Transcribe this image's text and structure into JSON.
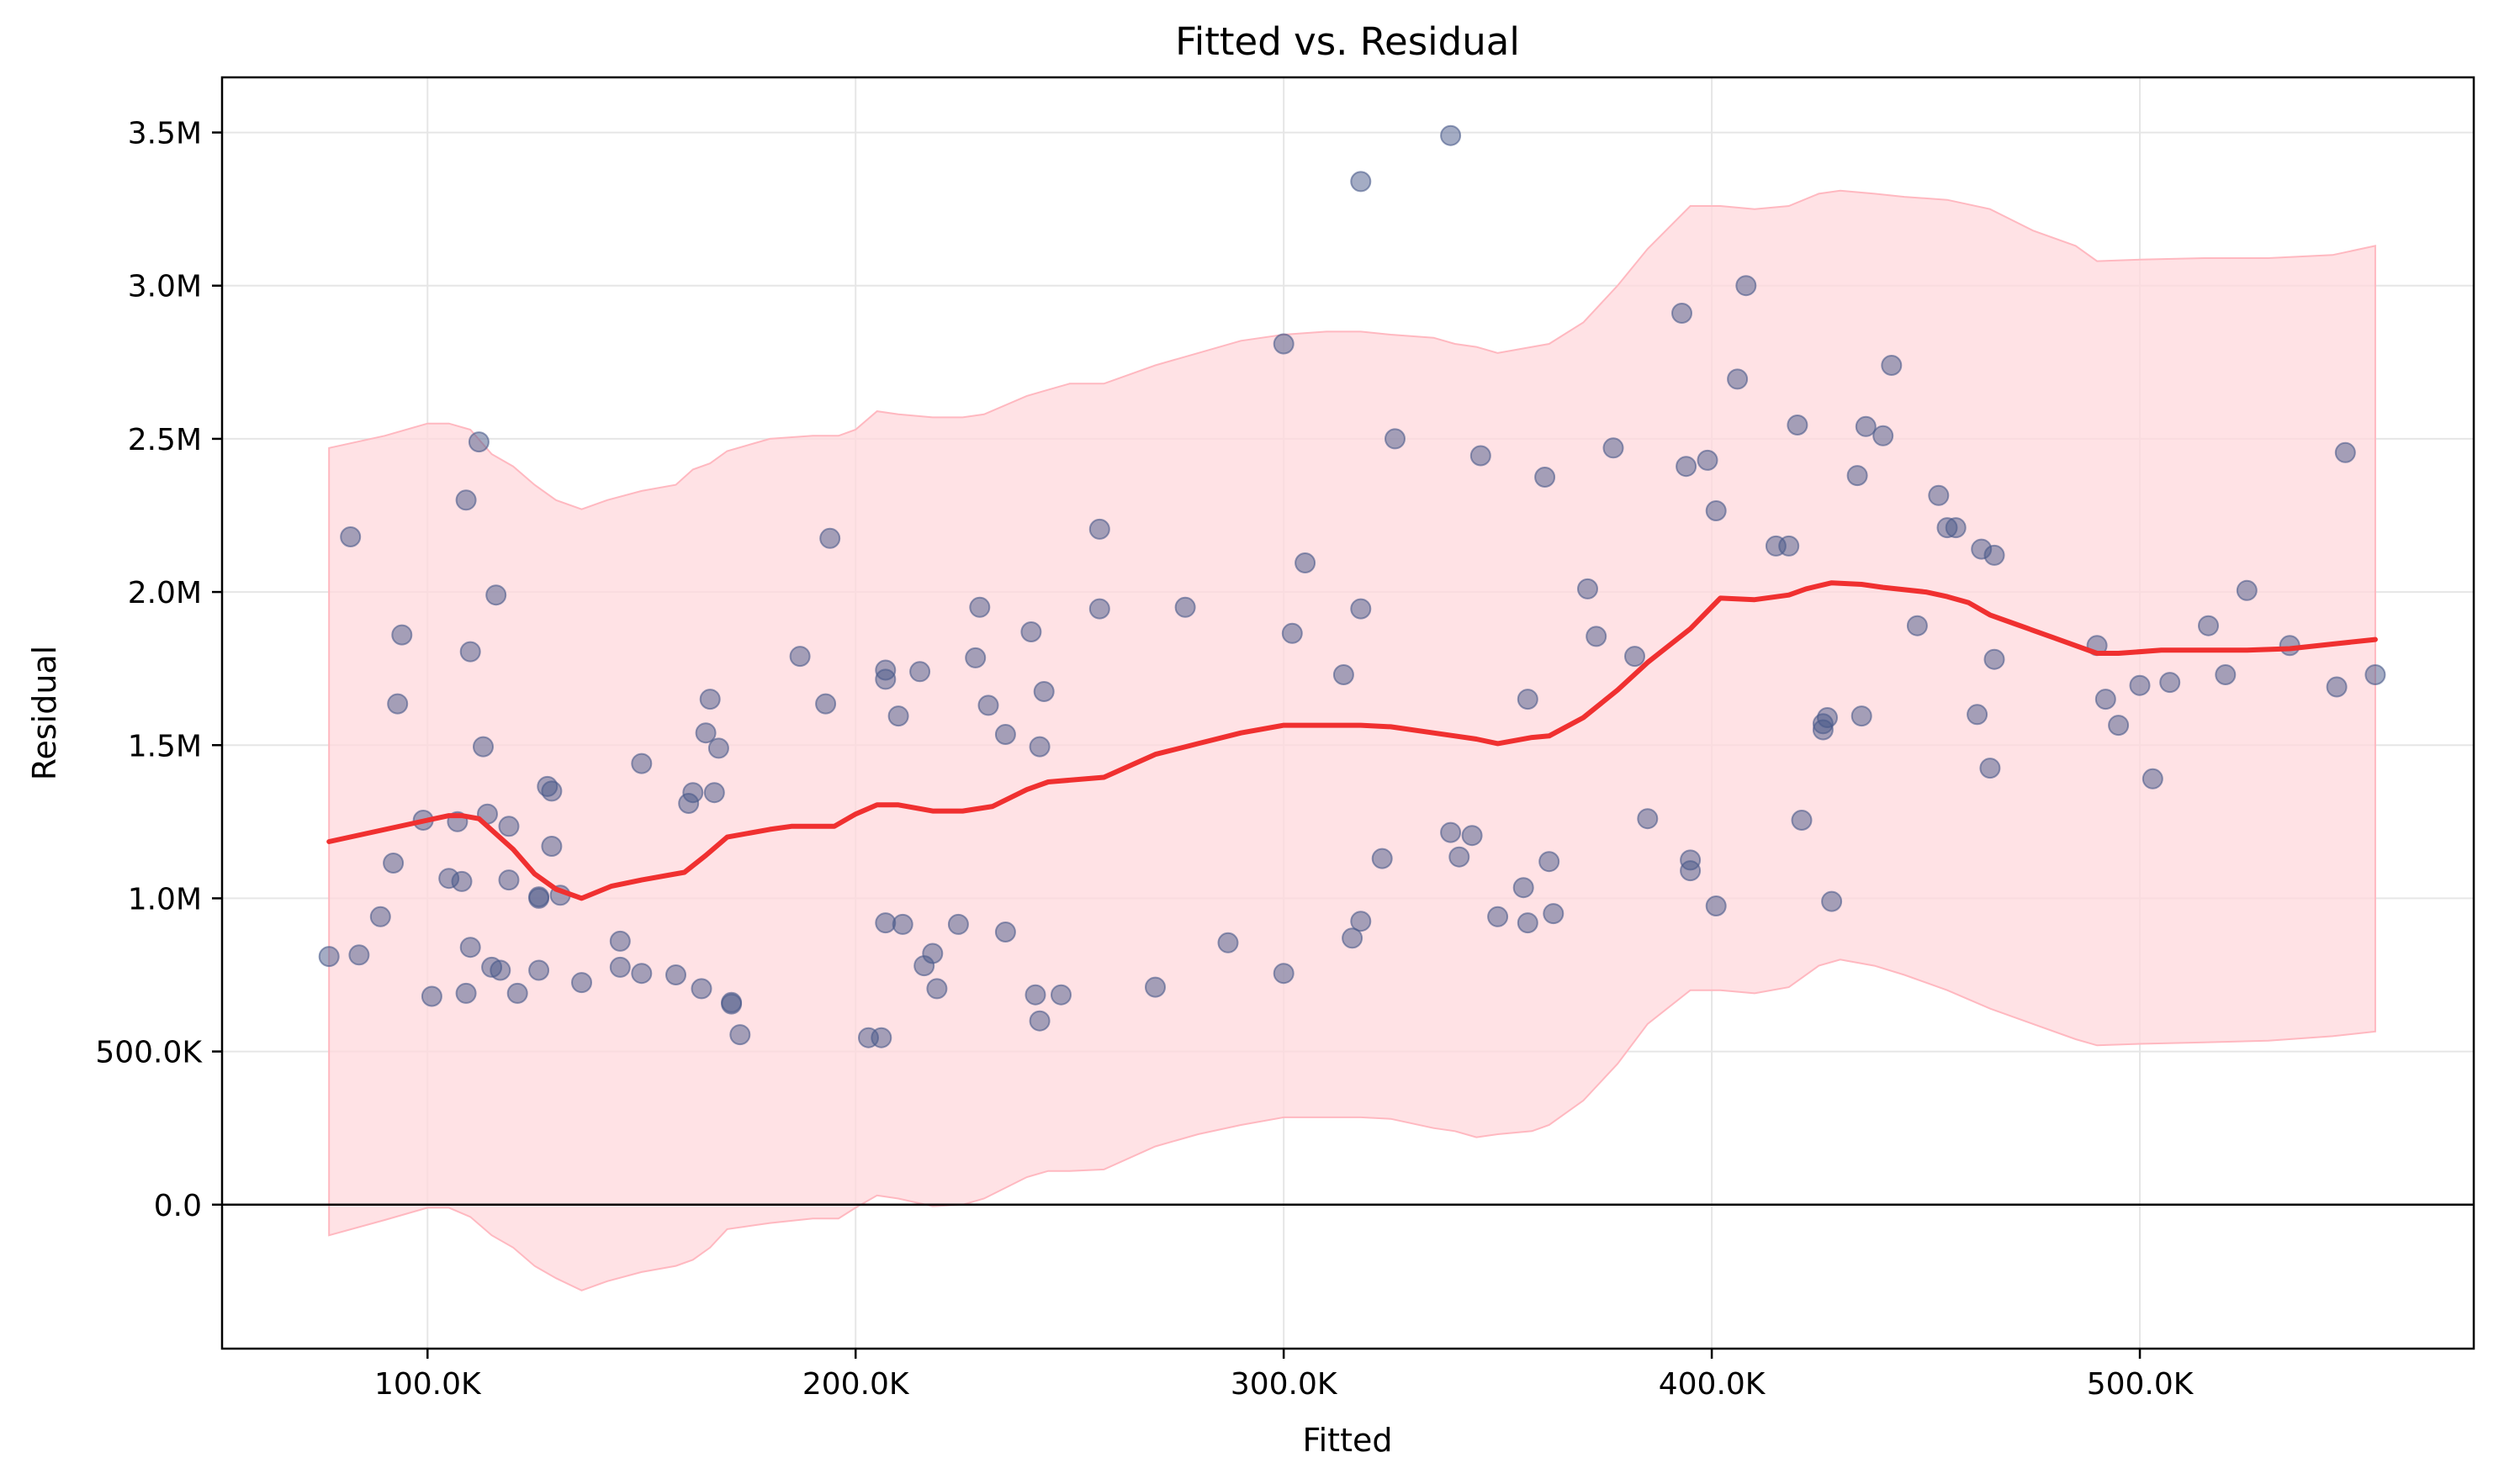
{
  "chart_data": {
    "type": "scatter",
    "title": "Fitted vs. Residual",
    "xlabel": "Fitted",
    "ylabel": "Residual",
    "xlim": [
      52000,
      578000
    ],
    "ylim": [
      -470000,
      3680000
    ],
    "xticks": [
      100000,
      200000,
      300000,
      400000,
      500000
    ],
    "xtick_labels": [
      "100.0K",
      "200.0K",
      "300.0K",
      "400.0K",
      "500.0K"
    ],
    "yticks": [
      0,
      500000,
      1000000,
      1500000,
      2000000,
      2500000,
      3000000,
      3500000
    ],
    "ytick_labels": [
      "0.0",
      "500.0K",
      "1.0M",
      "1.5M",
      "2.0M",
      "2.5M",
      "3.0M",
      "3.5M"
    ],
    "grid": true,
    "reference_line_y": 0,
    "colors": {
      "points": "#4a5a8a",
      "trend": "#f03030",
      "band_fill": "#ffd8dc",
      "band_edge": "#ffb8c0",
      "reference": "#000000",
      "grid": "#e6e6e6"
    },
    "points": [
      [
        77000,
        810000
      ],
      [
        82000,
        2180000
      ],
      [
        84000,
        815000
      ],
      [
        89000,
        940000
      ],
      [
        92000,
        1115000
      ],
      [
        93000,
        1635000
      ],
      [
        94000,
        1860000
      ],
      [
        99000,
        1255000
      ],
      [
        101000,
        680000
      ],
      [
        105000,
        1065000
      ],
      [
        107000,
        1250000
      ],
      [
        108000,
        1055000
      ],
      [
        109000,
        690000
      ],
      [
        109000,
        2300000
      ],
      [
        110000,
        1805000
      ],
      [
        110000,
        840000
      ],
      [
        112000,
        2490000
      ],
      [
        113000,
        1495000
      ],
      [
        114000,
        1275000
      ],
      [
        115000,
        775000
      ],
      [
        116000,
        1990000
      ],
      [
        117000,
        765000
      ],
      [
        119000,
        1235000
      ],
      [
        119000,
        1060000
      ],
      [
        121000,
        690000
      ],
      [
        126000,
        1000000
      ],
      [
        126000,
        1005000
      ],
      [
        126000,
        765000
      ],
      [
        128000,
        1365000
      ],
      [
        129000,
        1350000
      ],
      [
        129000,
        1170000
      ],
      [
        131000,
        1010000
      ],
      [
        136000,
        725000
      ],
      [
        145000,
        860000
      ],
      [
        145000,
        775000
      ],
      [
        150000,
        1440000
      ],
      [
        150000,
        755000
      ],
      [
        158000,
        750000
      ],
      [
        161000,
        1310000
      ],
      [
        162000,
        1345000
      ],
      [
        164000,
        705000
      ],
      [
        165000,
        1540000
      ],
      [
        166000,
        1650000
      ],
      [
        167000,
        1345000
      ],
      [
        168000,
        1490000
      ],
      [
        171000,
        660000
      ],
      [
        171000,
        655000
      ],
      [
        173000,
        555000
      ],
      [
        187000,
        1790000
      ],
      [
        193000,
        1635000
      ],
      [
        194000,
        2175000
      ],
      [
        203000,
        545000
      ],
      [
        206000,
        545000
      ],
      [
        207000,
        1745000
      ],
      [
        207000,
        1715000
      ],
      [
        207000,
        920000
      ],
      [
        210000,
        1595000
      ],
      [
        211000,
        915000
      ],
      [
        215000,
        1740000
      ],
      [
        216000,
        780000
      ],
      [
        218000,
        820000
      ],
      [
        219000,
        705000
      ],
      [
        224000,
        915000
      ],
      [
        228000,
        1785000
      ],
      [
        229000,
        1950000
      ],
      [
        231000,
        1630000
      ],
      [
        235000,
        890000
      ],
      [
        235000,
        1535000
      ],
      [
        241000,
        1870000
      ],
      [
        242000,
        685000
      ],
      [
        243000,
        1495000
      ],
      [
        243000,
        600000
      ],
      [
        244000,
        1675000
      ],
      [
        248000,
        685000
      ],
      [
        257000,
        2205000
      ],
      [
        257000,
        1945000
      ],
      [
        270000,
        710000
      ],
      [
        277000,
        1950000
      ],
      [
        287000,
        855000
      ],
      [
        300000,
        755000
      ],
      [
        300000,
        2810000
      ],
      [
        302000,
        1865000
      ],
      [
        305000,
        2095000
      ],
      [
        314000,
        1730000
      ],
      [
        316000,
        870000
      ],
      [
        318000,
        925000
      ],
      [
        318000,
        1945000
      ],
      [
        318000,
        3340000
      ],
      [
        323000,
        1130000
      ],
      [
        326000,
        2500000
      ],
      [
        339000,
        3490000
      ],
      [
        339000,
        1215000
      ],
      [
        341000,
        1135000
      ],
      [
        344000,
        1205000
      ],
      [
        346000,
        2445000
      ],
      [
        350000,
        940000
      ],
      [
        356000,
        1035000
      ],
      [
        357000,
        1650000
      ],
      [
        357000,
        920000
      ],
      [
        361000,
        2375000
      ],
      [
        362000,
        1120000
      ],
      [
        363000,
        950000
      ],
      [
        371000,
        2010000
      ],
      [
        373000,
        1855000
      ],
      [
        377000,
        2470000
      ],
      [
        382000,
        1790000
      ],
      [
        385000,
        1260000
      ],
      [
        393000,
        2910000
      ],
      [
        394000,
        2410000
      ],
      [
        395000,
        1125000
      ],
      [
        395000,
        1090000
      ],
      [
        399000,
        2430000
      ],
      [
        401000,
        2265000
      ],
      [
        401000,
        975000
      ],
      [
        406000,
        2695000
      ],
      [
        408000,
        3000000
      ],
      [
        415000,
        2150000
      ],
      [
        418000,
        2150000
      ],
      [
        420000,
        2545000
      ],
      [
        421000,
        1255000
      ],
      [
        426000,
        1570000
      ],
      [
        426000,
        1550000
      ],
      [
        427000,
        1590000
      ],
      [
        428000,
        990000
      ],
      [
        434000,
        2380000
      ],
      [
        435000,
        1595000
      ],
      [
        436000,
        2540000
      ],
      [
        440000,
        2510000
      ],
      [
        442000,
        2740000
      ],
      [
        448000,
        1890000
      ],
      [
        453000,
        2315000
      ],
      [
        455000,
        2210000
      ],
      [
        457000,
        2210000
      ],
      [
        462000,
        1600000
      ],
      [
        463000,
        2140000
      ],
      [
        465000,
        1425000
      ],
      [
        466000,
        1780000
      ],
      [
        466000,
        2120000
      ],
      [
        490000,
        1825000
      ],
      [
        492000,
        1650000
      ],
      [
        495000,
        1565000
      ],
      [
        500000,
        1695000
      ],
      [
        503000,
        1390000
      ],
      [
        507000,
        1705000
      ],
      [
        516000,
        1890000
      ],
      [
        520000,
        1730000
      ],
      [
        525000,
        2005000
      ],
      [
        535000,
        1825000
      ],
      [
        546000,
        1690000
      ],
      [
        548000,
        2455000
      ],
      [
        555000,
        1730000
      ]
    ],
    "trend": {
      "x": [
        77000,
        100000,
        105000,
        108000,
        112000,
        120000,
        125000,
        130000,
        136000,
        143000,
        150000,
        160000,
        165000,
        170000,
        180000,
        185000,
        195000,
        200000,
        205000,
        210000,
        218000,
        225000,
        232000,
        240000,
        245000,
        258000,
        270000,
        280000,
        290000,
        300000,
        310000,
        318000,
        325000,
        335000,
        340000,
        345000,
        350000,
        358000,
        362000,
        370000,
        378000,
        385000,
        395000,
        402000,
        410000,
        418000,
        422000,
        428000,
        435000,
        440000,
        450000,
        455000,
        460000,
        465000,
        470000,
        480000,
        490000,
        495000,
        505000,
        515000,
        525000,
        535000,
        545000,
        555000
      ],
      "y": [
        1185000,
        1255000,
        1270000,
        1270000,
        1260000,
        1160000,
        1080000,
        1030000,
        1000000,
        1040000,
        1060000,
        1085000,
        1140000,
        1200000,
        1225000,
        1235000,
        1235000,
        1275000,
        1305000,
        1305000,
        1285000,
        1285000,
        1300000,
        1355000,
        1380000,
        1395000,
        1470000,
        1505000,
        1540000,
        1565000,
        1565000,
        1565000,
        1560000,
        1540000,
        1530000,
        1520000,
        1505000,
        1525000,
        1530000,
        1590000,
        1680000,
        1770000,
        1880000,
        1980000,
        1975000,
        1990000,
        2010000,
        2030000,
        2025000,
        2015000,
        2000000,
        1985000,
        1965000,
        1925000,
        1900000,
        1850000,
        1800000,
        1800000,
        1810000,
        1810000,
        1810000,
        1815000,
        1830000,
        1845000
      ]
    },
    "band": {
      "x": [
        77000,
        90000,
        100000,
        105000,
        110000,
        115000,
        120000,
        125000,
        130000,
        136000,
        142000,
        150000,
        158000,
        162000,
        166000,
        170000,
        180000,
        190000,
        196000,
        200000,
        205000,
        210000,
        218000,
        225000,
        230000,
        240000,
        245000,
        250000,
        258000,
        270000,
        280000,
        290000,
        300000,
        310000,
        318000,
        325000,
        335000,
        340000,
        345000,
        350000,
        358000,
        362000,
        370000,
        378000,
        385000,
        395000,
        402000,
        410000,
        418000,
        425000,
        430000,
        438000,
        445000,
        455000,
        465000,
        475000,
        485000,
        490000,
        500000,
        515000,
        530000,
        545000,
        555000
      ],
      "upper": [
        2470000,
        2510000,
        2550000,
        2550000,
        2530000,
        2450000,
        2410000,
        2350000,
        2300000,
        2270000,
        2300000,
        2330000,
        2350000,
        2400000,
        2420000,
        2460000,
        2500000,
        2510000,
        2510000,
        2530000,
        2590000,
        2580000,
        2570000,
        2570000,
        2580000,
        2640000,
        2660000,
        2680000,
        2680000,
        2740000,
        2780000,
        2820000,
        2840000,
        2850000,
        2850000,
        2840000,
        2830000,
        2810000,
        2800000,
        2780000,
        2800000,
        2810000,
        2880000,
        3000000,
        3120000,
        3260000,
        3260000,
        3250000,
        3260000,
        3300000,
        3310000,
        3300000,
        3290000,
        3280000,
        3250000,
        3180000,
        3130000,
        3080000,
        3085000,
        3090000,
        3090000,
        3100000,
        3130000
      ],
      "lower": [
        -100000,
        -50000,
        -10000,
        -10000,
        -40000,
        -100000,
        -140000,
        -200000,
        -240000,
        -280000,
        -250000,
        -220000,
        -200000,
        -180000,
        -140000,
        -80000,
        -60000,
        -45000,
        -45000,
        -10000,
        30000,
        20000,
        -5000,
        0,
        20000,
        90000,
        110000,
        110000,
        115000,
        190000,
        230000,
        260000,
        285000,
        285000,
        285000,
        280000,
        250000,
        240000,
        220000,
        230000,
        240000,
        260000,
        340000,
        460000,
        590000,
        700000,
        700000,
        690000,
        710000,
        780000,
        800000,
        780000,
        750000,
        700000,
        640000,
        590000,
        540000,
        520000,
        525000,
        530000,
        535000,
        550000,
        565000
      ]
    }
  }
}
